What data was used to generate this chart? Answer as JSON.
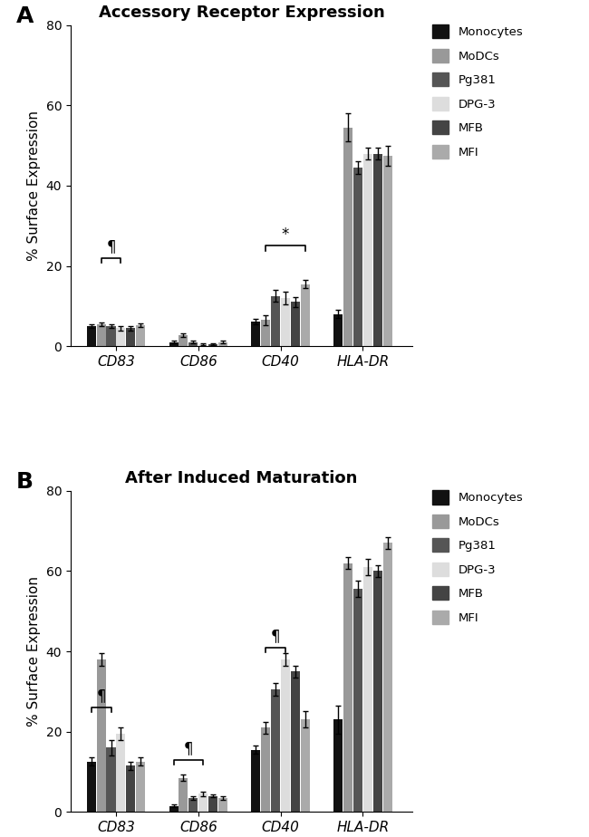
{
  "panel_A": {
    "title": "Accessory Receptor Expression",
    "label": "A",
    "groups": [
      "CD83",
      "CD86",
      "CD40",
      "HLA-DR"
    ],
    "values": [
      [
        5.0,
        5.5,
        5.0,
        4.5,
        4.5,
        5.2
      ],
      [
        1.0,
        2.8,
        1.0,
        0.5,
        0.5,
        1.0
      ],
      [
        6.2,
        6.5,
        12.5,
        12.0,
        11.0,
        15.5
      ],
      [
        8.0,
        54.5,
        44.5,
        48.0,
        48.0,
        47.5
      ]
    ],
    "errors": [
      [
        0.5,
        0.5,
        0.5,
        0.5,
        0.5,
        0.5
      ],
      [
        0.3,
        0.5,
        0.3,
        0.2,
        0.2,
        0.3
      ],
      [
        0.7,
        1.2,
        1.5,
        1.5,
        1.2,
        1.0
      ],
      [
        1.0,
        3.5,
        1.5,
        1.5,
        1.5,
        2.5
      ]
    ]
  },
  "panel_B": {
    "title": "After Induced Maturation",
    "label": "B",
    "groups": [
      "CD83",
      "CD86",
      "CD40",
      "HLA-DR"
    ],
    "values": [
      [
        12.5,
        38.0,
        16.0,
        19.5,
        11.5,
        12.5
      ],
      [
        1.5,
        8.5,
        3.5,
        4.5,
        4.0,
        3.5
      ],
      [
        15.5,
        21.0,
        30.5,
        38.0,
        35.0,
        23.0
      ],
      [
        23.0,
        62.0,
        55.5,
        61.0,
        60.0,
        67.0
      ]
    ],
    "errors": [
      [
        1.0,
        1.5,
        2.0,
        1.5,
        1.0,
        1.0
      ],
      [
        0.3,
        0.8,
        0.5,
        0.5,
        0.4,
        0.4
      ],
      [
        1.0,
        1.5,
        1.5,
        1.5,
        1.5,
        2.0
      ],
      [
        3.5,
        1.5,
        2.0,
        2.0,
        1.5,
        1.5
      ]
    ]
  },
  "colors": [
    "#111111",
    "#999999",
    "#555555",
    "#dddddd",
    "#444444",
    "#aaaaaa"
  ],
  "bar_width": 0.12,
  "ylim": [
    0,
    80
  ],
  "yticks": [
    0,
    20,
    40,
    60,
    80
  ],
  "ylabel": "% Surface Expression",
  "legend_labels": [
    "Monocytes",
    "MoDCs",
    "Pg381",
    "DPG-3",
    "MFB",
    "MFI"
  ],
  "annot_A": {
    "pilcrow": {
      "group": 0,
      "s1": 1,
      "s2": 3,
      "y": 22
    },
    "star": {
      "group": 2,
      "s1": 1,
      "s2": 5,
      "y": 25
    }
  },
  "annot_B": {
    "pilcrow1": {
      "group": 0,
      "s1": 0,
      "s2": 2,
      "y": 26
    },
    "pilcrow2": {
      "group": 1,
      "s1": 0,
      "s2": 3,
      "y": 13
    },
    "pilcrow3": {
      "group": 2,
      "s1": 1,
      "s2": 3,
      "y": 41
    }
  }
}
